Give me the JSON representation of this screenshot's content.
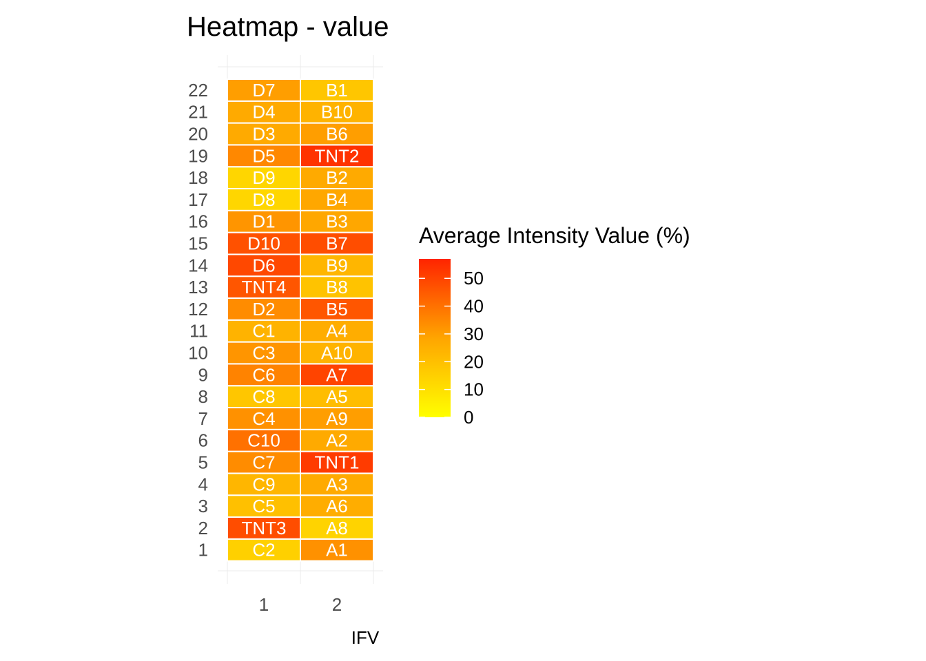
{
  "chart_data": {
    "type": "heatmap",
    "title": "Heatmap - value",
    "xlabel": "IFV",
    "ylabel": "",
    "x_categories": [
      "1",
      "2"
    ],
    "y_categories": [
      "1",
      "2",
      "3",
      "4",
      "5",
      "6",
      "7",
      "8",
      "9",
      "10",
      "11",
      "12",
      "13",
      "14",
      "15",
      "16",
      "17",
      "18",
      "19",
      "20",
      "21",
      "22"
    ],
    "cells": [
      {
        "x": "1",
        "y": "1",
        "label": "C2",
        "value": 15
      },
      {
        "x": "1",
        "y": "2",
        "label": "TNT3",
        "value": 48
      },
      {
        "x": "1",
        "y": "3",
        "label": "C5",
        "value": 20
      },
      {
        "x": "1",
        "y": "4",
        "label": "C9",
        "value": 23
      },
      {
        "x": "1",
        "y": "5",
        "label": "C7",
        "value": 34
      },
      {
        "x": "1",
        "y": "6",
        "label": "C10",
        "value": 40
      },
      {
        "x": "1",
        "y": "7",
        "label": "C4",
        "value": 33
      },
      {
        "x": "1",
        "y": "8",
        "label": "C8",
        "value": 18
      },
      {
        "x": "1",
        "y": "9",
        "label": "C6",
        "value": 36
      },
      {
        "x": "1",
        "y": "10",
        "label": "C3",
        "value": 32
      },
      {
        "x": "1",
        "y": "11",
        "label": "C1",
        "value": 24
      },
      {
        "x": "1",
        "y": "12",
        "label": "D2",
        "value": 34
      },
      {
        "x": "1",
        "y": "13",
        "label": "TNT4",
        "value": 46
      },
      {
        "x": "1",
        "y": "14",
        "label": "D6",
        "value": 49
      },
      {
        "x": "1",
        "y": "15",
        "label": "D10",
        "value": 47
      },
      {
        "x": "1",
        "y": "16",
        "label": "D1",
        "value": 32
      },
      {
        "x": "1",
        "y": "17",
        "label": "D8",
        "value": 13
      },
      {
        "x": "1",
        "y": "18",
        "label": "D9",
        "value": 13
      },
      {
        "x": "1",
        "y": "19",
        "label": "D5",
        "value": 35
      },
      {
        "x": "1",
        "y": "20",
        "label": "D3",
        "value": 27
      },
      {
        "x": "1",
        "y": "21",
        "label": "D4",
        "value": 27
      },
      {
        "x": "1",
        "y": "22",
        "label": "D7",
        "value": 30
      },
      {
        "x": "2",
        "y": "1",
        "label": "A1",
        "value": 33
      },
      {
        "x": "2",
        "y": "2",
        "label": "A8",
        "value": 14
      },
      {
        "x": "2",
        "y": "3",
        "label": "A6",
        "value": 26
      },
      {
        "x": "2",
        "y": "4",
        "label": "A3",
        "value": 27
      },
      {
        "x": "2",
        "y": "5",
        "label": "TNT1",
        "value": 52
      },
      {
        "x": "2",
        "y": "6",
        "label": "A2",
        "value": 27
      },
      {
        "x": "2",
        "y": "7",
        "label": "A9",
        "value": 30
      },
      {
        "x": "2",
        "y": "8",
        "label": "A5",
        "value": 21
      },
      {
        "x": "2",
        "y": "9",
        "label": "A7",
        "value": 50
      },
      {
        "x": "2",
        "y": "10",
        "label": "A10",
        "value": 24
      },
      {
        "x": "2",
        "y": "11",
        "label": "A4",
        "value": 26
      },
      {
        "x": "2",
        "y": "12",
        "label": "B5",
        "value": 46
      },
      {
        "x": "2",
        "y": "13",
        "label": "B8",
        "value": 19
      },
      {
        "x": "2",
        "y": "14",
        "label": "B9",
        "value": 23
      },
      {
        "x": "2",
        "y": "15",
        "label": "B7",
        "value": 48
      },
      {
        "x": "2",
        "y": "16",
        "label": "B3",
        "value": 28
      },
      {
        "x": "2",
        "y": "17",
        "label": "B4",
        "value": 28
      },
      {
        "x": "2",
        "y": "18",
        "label": "B2",
        "value": 27
      },
      {
        "x": "2",
        "y": "19",
        "label": "TNT2",
        "value": 54
      },
      {
        "x": "2",
        "y": "20",
        "label": "B6",
        "value": 30
      },
      {
        "x": "2",
        "y": "21",
        "label": "B10",
        "value": 24
      },
      {
        "x": "2",
        "y": "22",
        "label": "B1",
        "value": 18
      }
    ],
    "colorbar": {
      "title": "Average Intensity Value (%)",
      "min": 0,
      "max": 57,
      "ticks": [
        "0",
        "10",
        "20",
        "30",
        "40",
        "50"
      ],
      "low_color": "#FFFF00",
      "mid_color": "#FFA500",
      "high_color": "#FF2400"
    },
    "grid": true,
    "legend_position": "right"
  }
}
